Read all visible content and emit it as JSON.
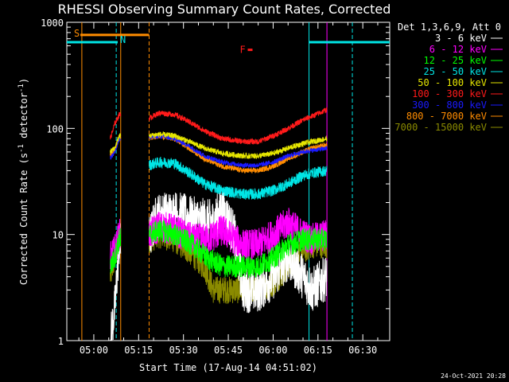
{
  "chart_data": {
    "type": "line",
    "title": "RHESSI Observing Summary Count Rates, Corrected",
    "xlabel": "Start Time (17-Aug-14 04:51:02)",
    "ylabel_main": "Corrected Count Rate (s",
    "ylabel_sup1": "-1",
    "ylabel_mid": " detector",
    "ylabel_sup2": "-1",
    "ylabel_end": ")",
    "yscale": "log",
    "ylim": [
      1,
      1000
    ],
    "xlim_minutes": [
      -9.033,
      99.0
    ],
    "x_ticks": [
      {
        "label": "05:00",
        "t": 0
      },
      {
        "label": "05:15",
        "t": 15
      },
      {
        "label": "05:30",
        "t": 30
      },
      {
        "label": "05:45",
        "t": 45
      },
      {
        "label": "06:00",
        "t": 60
      },
      {
        "label": "06:15",
        "t": 75
      },
      {
        "label": "06:30",
        "t": 90
      }
    ],
    "y_ticks": [
      {
        "label": "1",
        "v": 1
      },
      {
        "label": "10",
        "v": 10
      },
      {
        "label": "100",
        "v": 100
      },
      {
        "label": "1000",
        "v": 1000
      }
    ],
    "legend_header": "Det 1,3,6,9, Att 0",
    "corner_date": "24-Oct-2021 20:28",
    "flags": {
      "S": {
        "label": "S",
        "color": "#ff8c00",
        "t_start": -4.5,
        "t_end": 18.5,
        "level": 760
      },
      "N": {
        "label": "N",
        "color": "#00e5e5",
        "t_start": -9.033,
        "t_end": 8.0,
        "level": 650,
        "t_start2": 72.0,
        "t_end2": 99.0
      },
      "F": {
        "label": "F",
        "color": "#ff1a1a",
        "t": 51.5,
        "level": 550
      }
    },
    "vlines": [
      {
        "t": -4.0,
        "color": "#ff8c00",
        "style": "solid"
      },
      {
        "t": 7.5,
        "color": "#00e5e5",
        "style": "dashed"
      },
      {
        "t": 9.0,
        "color": "#ff8c00",
        "style": "solid"
      },
      {
        "t": 18.5,
        "color": "#ff8c00",
        "style": "dashed"
      },
      {
        "t": 72.0,
        "color": "#00e5e5",
        "style": "solid"
      },
      {
        "t": 78.0,
        "color": "#ff00ff",
        "style": "solid"
      },
      {
        "t": 86.5,
        "color": "#00e5e5",
        "style": "dashed"
      }
    ],
    "segments": [
      [
        5.5,
        9.0
      ],
      [
        18.5,
        78.0
      ]
    ],
    "series": [
      {
        "name": "3 - 6 keV",
        "color": "#ffffff",
        "noise": 0.5,
        "points": [
          [
            5.5,
            1
          ],
          [
            7,
            2
          ],
          [
            8.5,
            8
          ],
          [
            18.5,
            9
          ],
          [
            21,
            15
          ],
          [
            27,
            16
          ],
          [
            33,
            14
          ],
          [
            40,
            13
          ],
          [
            43,
            18
          ],
          [
            47,
            10
          ],
          [
            50,
            3
          ],
          [
            55,
            3
          ],
          [
            60,
            4
          ],
          [
            65,
            6
          ],
          [
            70,
            4
          ],
          [
            73,
            3
          ],
          [
            78,
            4
          ]
        ]
      },
      {
        "name": "6 - 12 keV",
        "color": "#ff00ff",
        "noise": 0.35,
        "points": [
          [
            5.5,
            6
          ],
          [
            7,
            7
          ],
          [
            8.5,
            10
          ],
          [
            18.5,
            10
          ],
          [
            22,
            12
          ],
          [
            27,
            11
          ],
          [
            33,
            9
          ],
          [
            38,
            9
          ],
          [
            43,
            11
          ],
          [
            47,
            9
          ],
          [
            50,
            8
          ],
          [
            55,
            8
          ],
          [
            60,
            10
          ],
          [
            65,
            13
          ],
          [
            70,
            10
          ],
          [
            73,
            9
          ],
          [
            78,
            10
          ]
        ]
      },
      {
        "name": "12 - 25 keV",
        "color": "#00ff00",
        "noise": 0.25,
        "points": [
          [
            5.5,
            5
          ],
          [
            7,
            6
          ],
          [
            8.5,
            9
          ],
          [
            18.5,
            10
          ],
          [
            22,
            11
          ],
          [
            27,
            10
          ],
          [
            33,
            8
          ],
          [
            38,
            6
          ],
          [
            43,
            5
          ],
          [
            50,
            5
          ],
          [
            55,
            5
          ],
          [
            60,
            6
          ],
          [
            65,
            8
          ],
          [
            70,
            9
          ],
          [
            73,
            9
          ],
          [
            78,
            9
          ]
        ]
      },
      {
        "name": "25 - 50 keV",
        "color": "#00e5e5",
        "noise": 0.12,
        "points": [
          [
            18.5,
            45
          ],
          [
            22,
            48
          ],
          [
            27,
            47
          ],
          [
            32,
            38
          ],
          [
            37,
            30
          ],
          [
            43,
            26
          ],
          [
            50,
            24
          ],
          [
            55,
            24
          ],
          [
            60,
            26
          ],
          [
            65,
            30
          ],
          [
            70,
            36
          ],
          [
            73,
            38
          ],
          [
            78,
            40
          ]
        ]
      },
      {
        "name": "50 - 100 keV",
        "color": "#e6e600",
        "noise": 0.06,
        "points": [
          [
            5.5,
            60
          ],
          [
            7,
            65
          ],
          [
            8.5,
            85
          ],
          [
            18.5,
            85
          ],
          [
            22,
            88
          ],
          [
            27,
            85
          ],
          [
            32,
            75
          ],
          [
            37,
            65
          ],
          [
            43,
            58
          ],
          [
            50,
            55
          ],
          [
            55,
            55
          ],
          [
            60,
            58
          ],
          [
            65,
            65
          ],
          [
            70,
            72
          ],
          [
            73,
            75
          ],
          [
            78,
            80
          ]
        ]
      },
      {
        "name": "100 - 300 keV",
        "color": "#ff1a1a",
        "noise": 0.06,
        "points": [
          [
            5.5,
            80
          ],
          [
            7,
            110
          ],
          [
            8.5,
            135
          ],
          [
            18.5,
            125
          ],
          [
            22,
            140
          ],
          [
            27,
            135
          ],
          [
            32,
            115
          ],
          [
            37,
            95
          ],
          [
            43,
            80
          ],
          [
            50,
            75
          ],
          [
            55,
            75
          ],
          [
            60,
            85
          ],
          [
            65,
            100
          ],
          [
            70,
            120
          ],
          [
            73,
            130
          ],
          [
            78,
            150
          ]
        ]
      },
      {
        "name": "300 - 800 keV",
        "color": "#1a1aff",
        "noise": 0.05,
        "points": [
          [
            5.5,
            52
          ],
          [
            7,
            60
          ],
          [
            8.5,
            80
          ],
          [
            18.5,
            82
          ],
          [
            22,
            85
          ],
          [
            27,
            80
          ],
          [
            32,
            68
          ],
          [
            37,
            55
          ],
          [
            43,
            48
          ],
          [
            50,
            45
          ],
          [
            55,
            45
          ],
          [
            60,
            48
          ],
          [
            65,
            55
          ],
          [
            70,
            60
          ],
          [
            73,
            62
          ],
          [
            78,
            65
          ]
        ]
      },
      {
        "name": "800 - 7000 keV",
        "color": "#ff8c00",
        "noise": 0.06,
        "points": [
          [
            5.5,
            55
          ],
          [
            7,
            62
          ],
          [
            8.5,
            80
          ],
          [
            18.5,
            82
          ],
          [
            22,
            85
          ],
          [
            27,
            80
          ],
          [
            32,
            65
          ],
          [
            37,
            52
          ],
          [
            43,
            44
          ],
          [
            50,
            40
          ],
          [
            55,
            40
          ],
          [
            60,
            44
          ],
          [
            65,
            52
          ],
          [
            70,
            60
          ],
          [
            73,
            65
          ],
          [
            78,
            70
          ]
        ]
      },
      {
        "name": "7000 - 15000 keV",
        "color": "#8b8b00",
        "noise": 0.3,
        "points": [
          [
            5.5,
            4
          ],
          [
            7,
            6
          ],
          [
            8.5,
            9
          ],
          [
            18.5,
            9
          ],
          [
            22,
            10
          ],
          [
            27,
            9
          ],
          [
            32,
            7
          ],
          [
            37,
            5
          ],
          [
            40,
            3
          ],
          [
            45,
            3
          ],
          [
            50,
            3
          ],
          [
            55,
            3
          ],
          [
            60,
            3.5
          ],
          [
            65,
            5
          ],
          [
            70,
            7
          ],
          [
            73,
            8
          ],
          [
            78,
            8
          ]
        ]
      }
    ]
  }
}
